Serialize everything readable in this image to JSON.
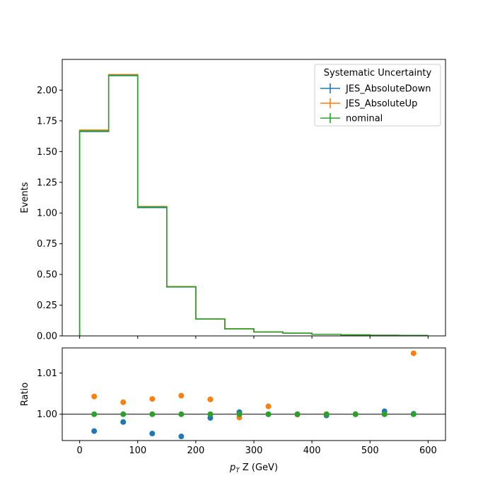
{
  "chart_data": [
    {
      "type": "histogram",
      "ylabel": "Events",
      "xlim": [
        -30,
        630
      ],
      "ylim": [
        0,
        2.25
      ],
      "yticks": [
        0.0,
        0.25,
        0.5,
        0.75,
        1.0,
        1.25,
        1.5,
        1.75,
        2.0
      ],
      "ytick_labels": [
        "0.00",
        "0.25",
        "0.50",
        "0.75",
        "1.00",
        "1.25",
        "1.50",
        "1.75",
        "2.00"
      ],
      "bin_edges": [
        0,
        50,
        100,
        150,
        200,
        250,
        300,
        350,
        400,
        450,
        500,
        550,
        600
      ],
      "legend": {
        "title": "Systematic Uncertainty",
        "position": "top-right"
      },
      "series": [
        {
          "name": "JES_AbsoluteDown",
          "color": "#1f77b4",
          "values": [
            1.663,
            2.118,
            1.044,
            0.398,
            0.137,
            0.057,
            0.032,
            0.022,
            0.013,
            0.008,
            0.005,
            0.004
          ]
        },
        {
          "name": "JES_AbsoluteUp",
          "color": "#ff7f0e",
          "values": [
            1.675,
            2.127,
            1.053,
            0.402,
            0.138,
            0.057,
            0.033,
            0.022,
            0.013,
            0.008,
            0.005,
            0.004
          ]
        },
        {
          "name": "nominal",
          "color": "#2ca02c",
          "values": [
            1.668,
            2.121,
            1.049,
            0.4,
            0.137,
            0.057,
            0.032,
            0.022,
            0.013,
            0.008,
            0.005,
            0.004
          ]
        }
      ]
    },
    {
      "type": "scatter",
      "xlabel": "p_T Z (GeV)",
      "ylabel": "Ratio",
      "xlim": [
        -30,
        630
      ],
      "ylim": [
        0.9936,
        1.0161
      ],
      "xticks": [
        0,
        100,
        200,
        300,
        400,
        500,
        600
      ],
      "yticks": [
        1.0,
        1.01
      ],
      "ytick_labels": [
        "1.00",
        "1.01"
      ],
      "reference_line": 1.0,
      "x": [
        25,
        75,
        125,
        175,
        225,
        275,
        325,
        375,
        425,
        475,
        525,
        575
      ],
      "series": [
        {
          "name": "JES_AbsoluteDown",
          "color": "#1f77b4",
          "values": [
            0.9959,
            0.9981,
            0.9953,
            0.9946,
            0.9991,
            1.0005,
            1.0,
            1.0,
            0.9997,
            1.0,
            1.0007,
            1.0001
          ]
        },
        {
          "name": "JES_AbsoluteUp",
          "color": "#ff7f0e",
          "values": [
            1.0043,
            1.0029,
            1.0037,
            1.0045,
            1.0036,
            0.9992,
            1.0019,
            0.9999,
            1.0,
            1.0,
            1.0,
            1.0148
          ]
        },
        {
          "name": "nominal",
          "color": "#2ca02c",
          "values": [
            1.0,
            1.0,
            1.0,
            1.0,
            1.0,
            1.0,
            1.0,
            1.0,
            1.0,
            1.0,
            1.0,
            1.0
          ]
        }
      ]
    }
  ]
}
